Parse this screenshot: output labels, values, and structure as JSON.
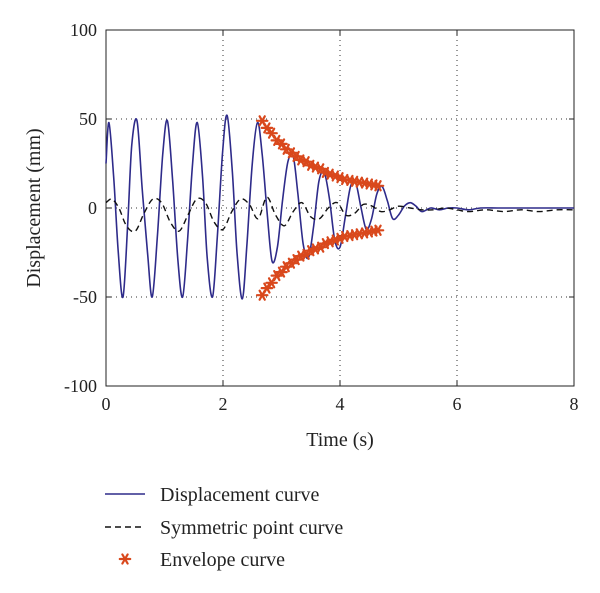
{
  "chart_data": {
    "type": "line",
    "title": "",
    "xlabel": "Time (s)",
    "ylabel": "Displacement (mm)",
    "xlim": [
      0,
      8
    ],
    "ylim": [
      -100,
      100
    ],
    "x_ticks": [
      "0",
      "2",
      "4",
      "6",
      "8"
    ],
    "y_ticks": [
      "100",
      "50",
      "0",
      "-50",
      "-100"
    ],
    "grid": true,
    "legend_position": "below",
    "series": [
      {
        "name": "Displacement curve",
        "style": "solid",
        "color": "#2e2b8a",
        "x": [
          0.0,
          0.05,
          0.13,
          0.21,
          0.29,
          0.37,
          0.44,
          0.53,
          0.62,
          0.71,
          0.79,
          0.88,
          0.97,
          1.05,
          1.14,
          1.23,
          1.31,
          1.39,
          1.48,
          1.56,
          1.65,
          1.73,
          1.82,
          1.9,
          1.99,
          2.07,
          2.16,
          2.24,
          2.33,
          2.41,
          2.5,
          2.59,
          2.67,
          2.76,
          2.84,
          2.93,
          3.02,
          3.11,
          3.2,
          3.28,
          3.37,
          3.46,
          3.55,
          3.64,
          3.73,
          3.82,
          3.91,
          4.0,
          4.09,
          4.18,
          4.27,
          4.36,
          4.45,
          4.54,
          4.63,
          4.72,
          4.81,
          4.9,
          5.0,
          5.1,
          5.2,
          5.3,
          5.4,
          5.55,
          5.7,
          5.85,
          6.0,
          6.2,
          6.4,
          6.7,
          7.0,
          7.5,
          8.0
        ],
        "y": [
          25,
          48,
          18,
          -25,
          -50,
          -10,
          35,
          49,
          10,
          -25,
          -50,
          -15,
          30,
          49,
          15,
          -30,
          -50,
          -20,
          25,
          48,
          18,
          -28,
          -50,
          -18,
          30,
          52,
          20,
          -25,
          -51,
          -20,
          25,
          48,
          30,
          -5,
          -30,
          -22,
          5,
          26,
          29,
          8,
          -20,
          -28,
          -10,
          15,
          20,
          5,
          -18,
          -22,
          -5,
          12,
          14,
          0,
          -12,
          -6,
          8,
          12,
          4,
          -6,
          -4,
          1,
          3,
          1,
          -2,
          0,
          -1,
          0,
          0,
          -1,
          0,
          0,
          0,
          0,
          0
        ]
      },
      {
        "name": "Symmetric point curve",
        "style": "dashed",
        "color": "#111111",
        "x": [
          0.0,
          0.1,
          0.22,
          0.35,
          0.5,
          0.65,
          0.8,
          0.95,
          1.1,
          1.25,
          1.4,
          1.55,
          1.7,
          1.85,
          2.0,
          2.15,
          2.3,
          2.45,
          2.6,
          2.75,
          2.9,
          3.05,
          3.2,
          3.35,
          3.5,
          3.65,
          3.8,
          3.95,
          4.1,
          4.25,
          4.4,
          4.55,
          4.7,
          4.85,
          5.0,
          5.2,
          5.4,
          5.6,
          5.8,
          6.0,
          6.2,
          6.5,
          6.8,
          7.1,
          7.4,
          7.7,
          8.0
        ],
        "y": [
          3,
          5,
          0,
          -10,
          -13,
          -3,
          5,
          3,
          -8,
          -13,
          -4,
          5,
          3,
          -8,
          -12,
          -2,
          5,
          2,
          -6,
          6,
          -4,
          -10,
          -2,
          3,
          -5,
          -6,
          0,
          3,
          -4,
          -3,
          2,
          1,
          -2,
          -1,
          1,
          0,
          -1,
          -1,
          0,
          -1,
          -2,
          -1,
          -2,
          -1,
          -2,
          -1,
          -1
        ]
      },
      {
        "name": "Envelope curve",
        "style": "markers",
        "marker": "asterisk",
        "color": "#d9481c",
        "x": [
          2.67,
          2.75,
          2.83,
          2.92,
          3.0,
          3.08,
          3.17,
          3.25,
          3.33,
          3.42,
          3.5,
          3.58,
          3.67,
          3.75,
          3.83,
          3.92,
          4.0,
          4.08,
          4.17,
          4.25,
          4.33,
          4.42,
          4.5,
          4.58,
          4.65
        ],
        "y_upper": [
          49,
          45,
          42,
          38,
          36,
          33,
          31,
          29,
          27,
          26,
          24,
          23,
          22,
          20,
          19,
          18,
          17,
          16,
          15.5,
          15,
          14.5,
          14,
          13.5,
          13,
          12.5
        ],
        "y_lower": [
          -49,
          -45,
          -42,
          -38,
          -36,
          -33,
          -31,
          -29,
          -27,
          -26,
          -24,
          -23,
          -22,
          -20,
          -19,
          -18,
          -17,
          -16,
          -15.5,
          -15,
          -14.5,
          -14,
          -13.5,
          -13,
          -12.5
        ]
      }
    ]
  }
}
